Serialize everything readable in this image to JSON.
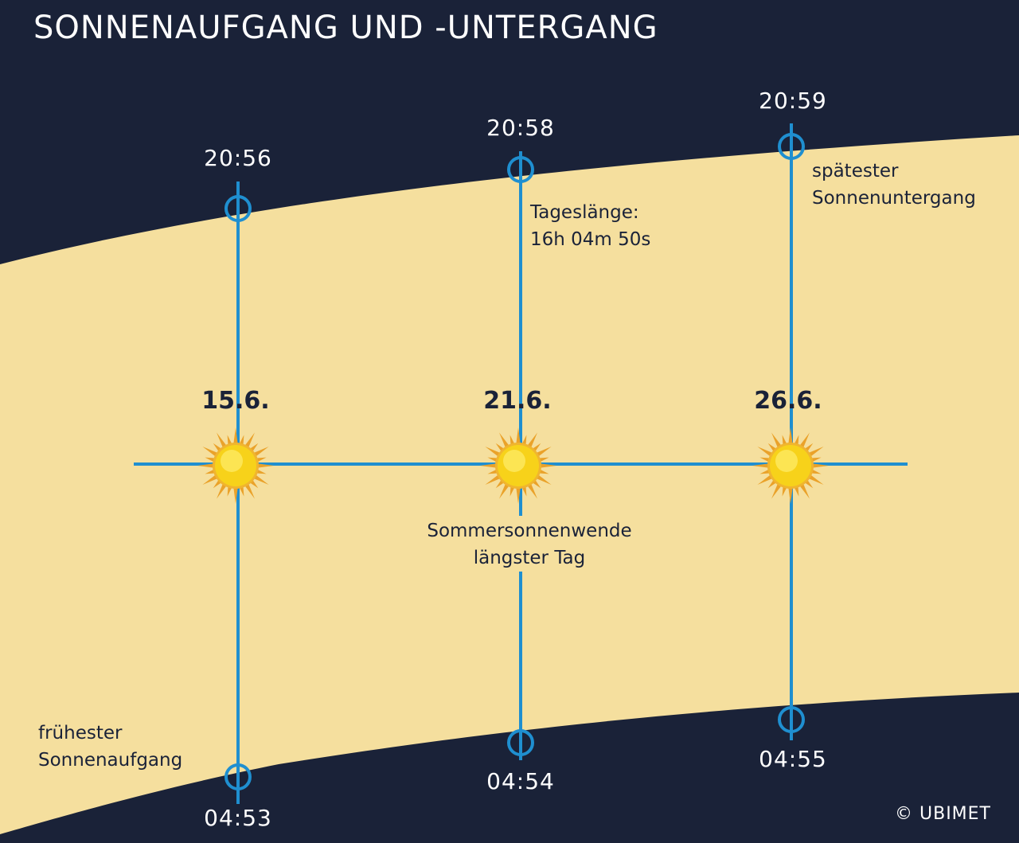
{
  "title": "SONNENAUFGANG UND -UNTERGANG",
  "colors": {
    "night": "#1a2238",
    "day": "#f5df9e",
    "line": "#1f8fd0",
    "sun": "#f7d21a",
    "ray": "#eaa22a"
  },
  "days": [
    {
      "date": "15.6.",
      "sunset": "20:56",
      "sunrise": "04:53"
    },
    {
      "date": "21.6.",
      "sunset": "20:58",
      "sunrise": "04:54"
    },
    {
      "date": "26.6.",
      "sunset": "20:59",
      "sunrise": "04:55"
    }
  ],
  "notes": {
    "daylength_line1": "Tageslänge:",
    "daylength_line2": "16h 04m 50s",
    "latest_line1": "spätester",
    "latest_line2": "Sonnenuntergang",
    "earliest_line1": "frühester",
    "earliest_line2": "Sonnenaufgang",
    "solstice_line1": "Sommersonnenwende",
    "solstice_line2": "längster Tag"
  },
  "copyright": "© UBIMET"
}
